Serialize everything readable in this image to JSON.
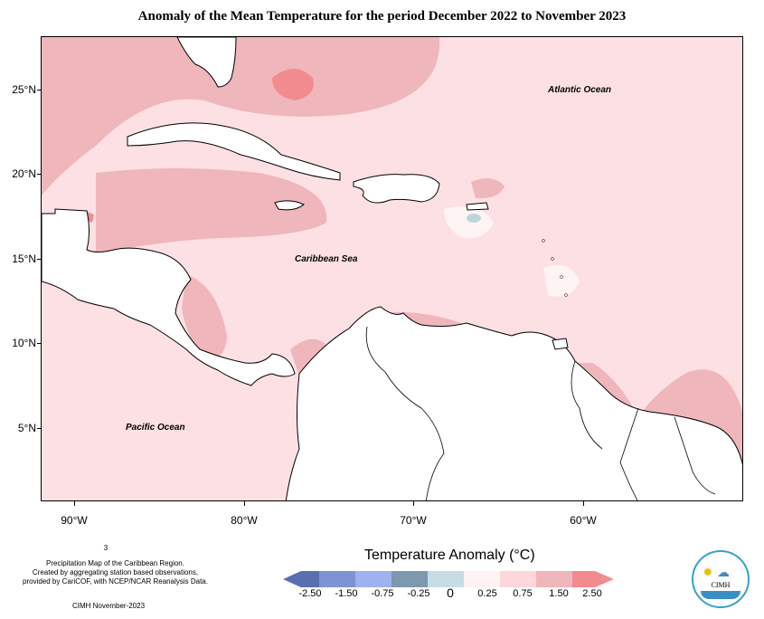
{
  "title": "Anomaly of the Mean Temperature for the period December 2022 to November 2023",
  "map": {
    "lat_labels": [
      "25°N",
      "20°N",
      "15°N",
      "10°N",
      "5°N"
    ],
    "lon_labels": [
      "90°W",
      "80°W",
      "70°W",
      "60°W"
    ],
    "place_labels": {
      "atlantic": "Atlantic Ocean",
      "caribbean": "Caribbean Sea",
      "pacific": "Pacific Ocean"
    },
    "colors": {
      "ocean_base": "#fde0e4",
      "anomaly_mid": "#efb6bb",
      "anomaly_high": "#f28b90",
      "anomaly_low": "#ffffff",
      "anomaly_cool": "#bcd6de",
      "land": "#ffffff"
    }
  },
  "legend": {
    "title": "Temperature Anomaly (°C)",
    "tick_labels": [
      "-2.50",
      "-1.50",
      "-0.75",
      "-0.25",
      "0",
      "0.25",
      "0.75",
      "1.50",
      "2.50"
    ],
    "colors": [
      "#5a6fb0",
      "#7f93d3",
      "#9fb1ee",
      "#7e98ad",
      "#c7dde4",
      "#fef4f4",
      "#fdd7dc",
      "#efb6bb",
      "#f28b90"
    ]
  },
  "footnotes": {
    "marker": "3",
    "line1": "Precipitation Map of the Caribbean Region.",
    "line2": "Created by aggregating station based observations,",
    "line3": "provided by CariCOF, with NCEP/NCAR Reanalysis Data.",
    "credit": "CIMH November-2023"
  },
  "logo": {
    "abbr": "CIMH"
  }
}
